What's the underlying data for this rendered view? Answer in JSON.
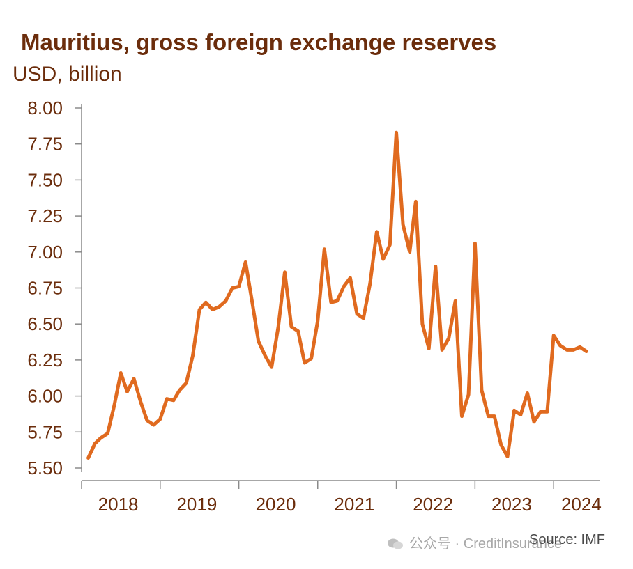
{
  "chart_data": {
    "type": "line",
    "title": "Mauritius, gross foreign exchange reserves",
    "ylabel": "USD, billion",
    "xlabel": "",
    "ylim": [
      5.5,
      8.0
    ],
    "yticks": [
      "8.00",
      "7.75",
      "7.50",
      "7.25",
      "7.00",
      "6.75",
      "6.50",
      "6.25",
      "6.00",
      "5.75",
      "5.50"
    ],
    "xticks": [
      "2018",
      "2019",
      "2020",
      "2021",
      "2022",
      "2023",
      "2024"
    ],
    "grid": false,
    "legend": "none",
    "line_color": "#e06a1f",
    "series": [
      {
        "x": [
          "2018-01",
          "2018-02",
          "2018-03",
          "2018-04",
          "2018-05",
          "2018-06",
          "2018-07",
          "2018-08",
          "2018-09",
          "2018-10",
          "2018-11",
          "2018-12",
          "2019-01",
          "2019-02",
          "2019-03",
          "2019-04",
          "2019-05",
          "2019-06",
          "2019-07",
          "2019-08",
          "2019-09",
          "2019-10",
          "2019-11",
          "2019-12",
          "2020-01",
          "2020-02",
          "2020-03",
          "2020-04",
          "2020-05",
          "2020-06",
          "2020-07",
          "2020-08",
          "2020-09",
          "2020-10",
          "2020-11",
          "2020-12",
          "2021-01",
          "2021-02",
          "2021-03",
          "2021-04",
          "2021-05",
          "2021-06",
          "2021-07",
          "2021-08",
          "2021-09",
          "2021-10",
          "2021-11",
          "2021-12",
          "2022-01",
          "2022-02",
          "2022-03",
          "2022-04",
          "2022-05",
          "2022-06",
          "2022-07",
          "2022-08",
          "2022-09",
          "2022-10",
          "2022-11",
          "2022-12",
          "2023-01",
          "2023-02",
          "2023-03",
          "2023-04",
          "2023-05",
          "2023-06",
          "2023-07",
          "2023-08",
          "2023-09",
          "2023-10",
          "2023-11",
          "2023-12",
          "2024-01",
          "2024-02",
          "2024-03",
          "2024-04",
          "2024-05"
        ],
        "values": [
          5.57,
          5.67,
          5.71,
          5.74,
          5.93,
          6.16,
          6.03,
          6.12,
          5.96,
          5.83,
          5.8,
          5.84,
          5.98,
          5.97,
          6.04,
          6.09,
          6.28,
          6.6,
          6.65,
          6.6,
          6.62,
          6.66,
          6.75,
          6.76,
          6.93,
          6.65,
          6.38,
          6.28,
          6.2,
          6.48,
          6.86,
          6.48,
          6.45,
          6.23,
          6.26,
          6.52,
          7.02,
          6.65,
          6.66,
          6.76,
          6.82,
          6.57,
          6.54,
          6.78,
          7.14,
          6.95,
          7.05,
          7.83,
          7.19,
          7.0,
          7.35,
          6.5,
          6.33,
          6.9,
          6.32,
          6.4,
          6.66,
          5.86,
          6.01,
          7.06,
          6.04,
          5.86,
          5.86,
          5.66,
          5.58,
          5.9,
          5.87,
          6.02,
          5.82,
          5.89,
          5.89,
          6.42,
          6.35,
          6.32,
          6.32,
          6.34,
          6.31
        ]
      }
    ]
  },
  "source": "Source: IMF",
  "watermark": "公众号 · CreditInsurance"
}
